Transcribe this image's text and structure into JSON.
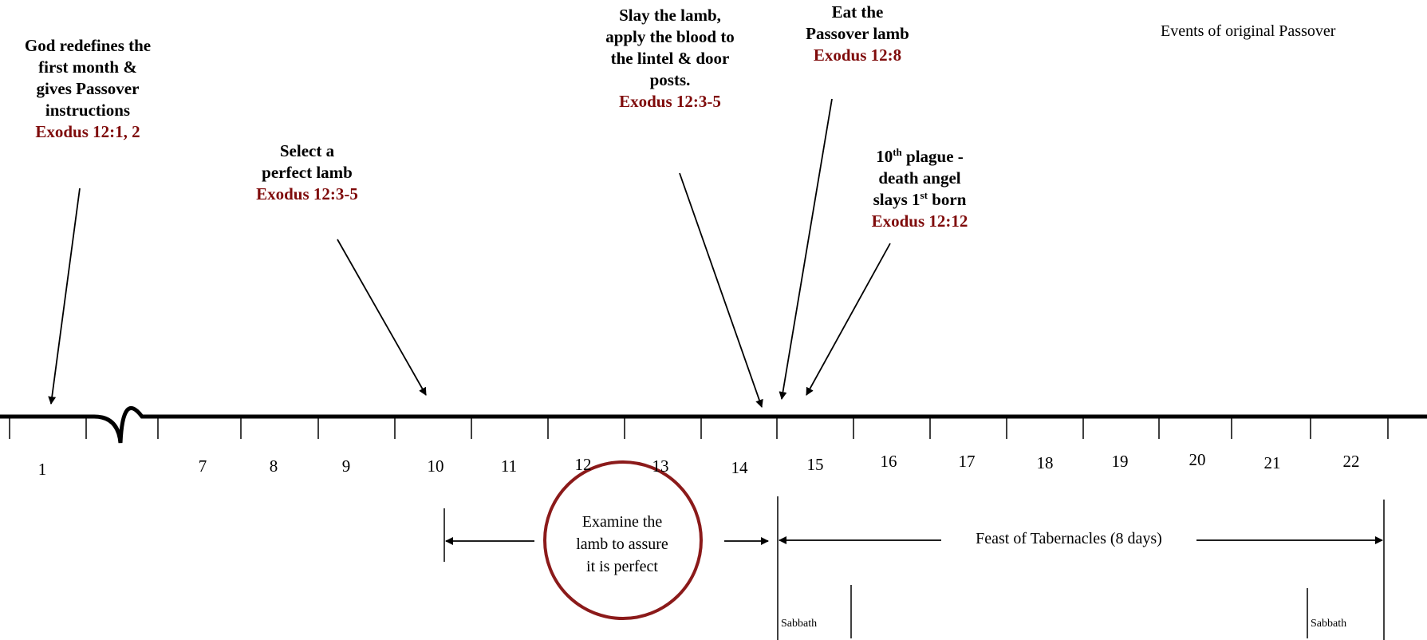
{
  "title": "Events of original Passover",
  "events": [
    {
      "lines": [
        "God redefines the",
        "first month &",
        "gives Passover",
        "instructions"
      ],
      "ref": "Exodus 12:1, 2"
    },
    {
      "lines": [
        "Select a",
        "perfect lamb"
      ],
      "ref": "Exodus 12:3-5"
    },
    {
      "lines": [
        "Slay the lamb,",
        "apply the blood to",
        "the lintel & door",
        "posts."
      ],
      "ref": "Exodus 12:3-5"
    },
    {
      "lines": [
        "Eat the",
        "Passover lamb"
      ],
      "ref": "Exodus 12:8"
    },
    {
      "line1_num": "10",
      "line1_sup": "th",
      "line1_rest": " plague -",
      "line2": "death angel",
      "line3_pre": "slays 1",
      "line3_sup": "st",
      "line3_rest": " born",
      "ref": "Exodus 12:12"
    }
  ],
  "days": [
    "1",
    "7",
    "8",
    "9",
    "10",
    "11",
    "12",
    "13",
    "14",
    "15",
    "16",
    "17",
    "18",
    "19",
    "20",
    "21",
    "22"
  ],
  "examine": {
    "lines": [
      "Examine the",
      "lamb to assure",
      "it is perfect"
    ]
  },
  "feast": {
    "label": "Feast of Tabernacles (8 days)"
  },
  "sabbath": [
    "Sabbath",
    "Sabbath"
  ],
  "colors": {
    "reference": "#7f0b0b",
    "circle": "#8b1a1a",
    "line": "#000000"
  }
}
